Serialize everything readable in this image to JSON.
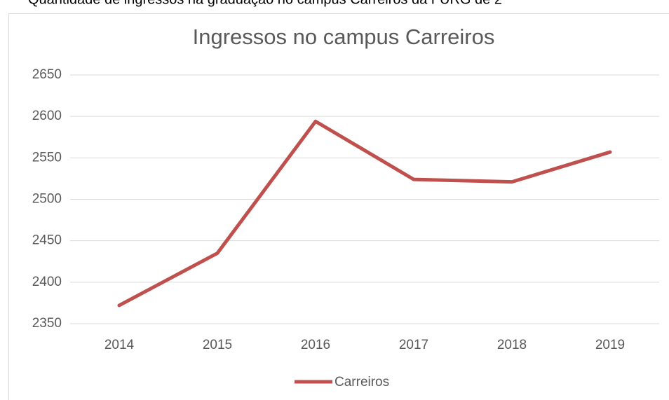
{
  "caption": "Quantidade de ingressos na graduação no campus Carreiros da FURG de 2",
  "chart_data": {
    "type": "line",
    "title": "Ingressos no campus Carreiros",
    "categories": [
      "2014",
      "2015",
      "2016",
      "2017",
      "2018",
      "2019"
    ],
    "series": [
      {
        "name": "Carreiros",
        "color": "#c0504d",
        "values": [
          2372,
          2435,
          2594,
          2524,
          2521,
          2557
        ]
      }
    ],
    "ylim": [
      2350,
      2650
    ],
    "yticks": [
      2350,
      2400,
      2450,
      2500,
      2550,
      2600,
      2650
    ],
    "grid": true,
    "legend": "bottom"
  }
}
